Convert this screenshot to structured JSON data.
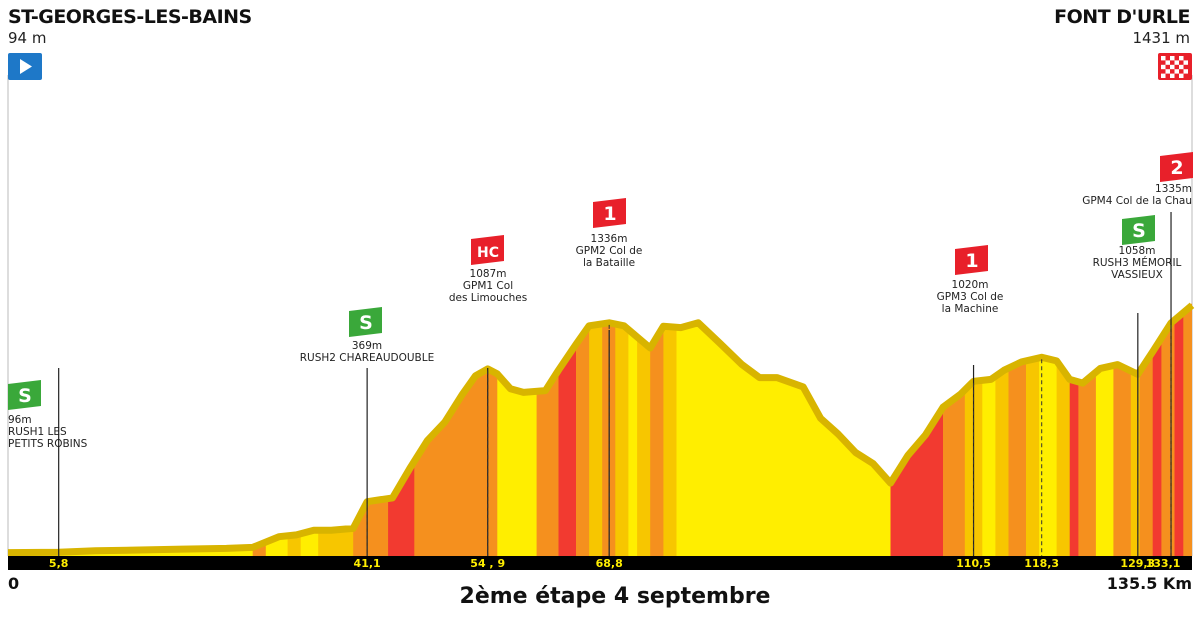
{
  "start": {
    "name": "ST-GEORGES-LES-BAINS",
    "altitude": "94 m"
  },
  "finish": {
    "name": "FONT D'URLE",
    "altitude": "1431 m"
  },
  "caption": "2ème étape 4 septembre",
  "distance_start": "0",
  "distance_end": "135.5 Km",
  "colors": {
    "flat": "#ffee00",
    "medium": "#f7c600",
    "steep": "#f5901e",
    "very_steep": "#f23a30",
    "ridge": "#d8b400",
    "sprint_badge": "#3aa83a",
    "climb_badge": "#e8202a",
    "start_flag": "#1e78c8"
  },
  "chart_data": {
    "type": "area",
    "x_unit": "km",
    "y_unit": "m",
    "xlim": [
      0,
      135.5
    ],
    "profile": [
      [
        0,
        94
      ],
      [
        5.8,
        96
      ],
      [
        10,
        104
      ],
      [
        15,
        108
      ],
      [
        20,
        113
      ],
      [
        25,
        117
      ],
      [
        28,
        122
      ],
      [
        31,
        180
      ],
      [
        33,
        190
      ],
      [
        35,
        215
      ],
      [
        37,
        215
      ],
      [
        39.5,
        225
      ],
      [
        41.1,
        369
      ],
      [
        44,
        390
      ],
      [
        46,
        550
      ],
      [
        48,
        700
      ],
      [
        50,
        800
      ],
      [
        52,
        950
      ],
      [
        53.5,
        1050
      ],
      [
        54.9,
        1087
      ],
      [
        56,
        1060
      ],
      [
        57.5,
        980
      ],
      [
        59,
        960
      ],
      [
        61.5,
        970
      ],
      [
        63,
        1080
      ],
      [
        65,
        1220
      ],
      [
        66.5,
        1320
      ],
      [
        68.8,
        1336
      ],
      [
        70.5,
        1320
      ],
      [
        72,
        1260
      ],
      [
        73.5,
        1200
      ],
      [
        75,
        1318
      ],
      [
        77,
        1310
      ],
      [
        79,
        1336
      ],
      [
        81.5,
        1225
      ],
      [
        84,
        1110
      ],
      [
        86,
        1040
      ],
      [
        88,
        1040
      ],
      [
        91,
        990
      ],
      [
        93,
        820
      ],
      [
        95,
        735
      ],
      [
        97,
        635
      ],
      [
        99,
        575
      ],
      [
        101,
        470
      ],
      [
        103,
        620
      ],
      [
        105,
        730
      ],
      [
        107,
        880
      ],
      [
        109,
        950
      ],
      [
        110.5,
        1020
      ],
      [
        112.5,
        1030
      ],
      [
        114,
        1080
      ],
      [
        116,
        1125
      ],
      [
        118.3,
        1150
      ],
      [
        120,
        1130
      ],
      [
        121.5,
        1030
      ],
      [
        123,
        1010
      ],
      [
        125,
        1090
      ],
      [
        127,
        1110
      ],
      [
        129.3,
        1058
      ],
      [
        131,
        1180
      ],
      [
        133.1,
        1335
      ],
      [
        135.5,
        1431
      ]
    ],
    "distance_markers": [
      "5,8",
      "41,1",
      "54 , 9",
      "68,8",
      "110,5",
      "118,3",
      "129,3",
      "133,1"
    ],
    "points": [
      {
        "km": 5.8,
        "type": "sprint",
        "badge": "S",
        "label_lines": [
          "96m",
          "RUSH1 LES",
          "PETITS ROBINS"
        ],
        "align": "left"
      },
      {
        "km": 41.1,
        "type": "sprint",
        "badge": "S",
        "label_lines": [
          "369m",
          "RUSH2 CHAREAUDOUBLE"
        ],
        "align": "center"
      },
      {
        "km": 54.9,
        "type": "climb",
        "badge": "HC",
        "label_lines": [
          "1087m",
          "GPM1 Col",
          "des Limouches"
        ],
        "align": "center"
      },
      {
        "km": 68.8,
        "type": "climb",
        "badge": "1",
        "label_lines": [
          "1336m",
          "GPM2 Col de",
          "la Bataille"
        ],
        "align": "center"
      },
      {
        "km": 110.5,
        "type": "climb",
        "badge": "1",
        "label_lines": [
          "1020m",
          "GPM3 Col de",
          "la Machine"
        ],
        "align": "center"
      },
      {
        "km": 129.3,
        "type": "sprint",
        "badge": "S",
        "label_lines": [
          "1058m",
          "RUSH3 MÉMORIL",
          "VASSIEUX"
        ],
        "align": "center"
      },
      {
        "km": 133.1,
        "type": "climb",
        "badge": "2",
        "label_lines": [
          "1335m",
          "GPM4 Col de la Chau"
        ],
        "align": "right"
      }
    ],
    "gradient_bands": [
      [
        0,
        28,
        "flat"
      ],
      [
        28,
        29.5,
        "steep"
      ],
      [
        29.5,
        32,
        "flat"
      ],
      [
        32,
        33.5,
        "medium"
      ],
      [
        33.5,
        35.5,
        "flat"
      ],
      [
        35.5,
        39.5,
        "medium"
      ],
      [
        39.5,
        43.5,
        "steep"
      ],
      [
        43.5,
        46.5,
        "very_steep"
      ],
      [
        46.5,
        56,
        "steep"
      ],
      [
        56,
        60.5,
        "flat"
      ],
      [
        60.5,
        63,
        "steep"
      ],
      [
        63,
        65,
        "very_steep"
      ],
      [
        65,
        66.5,
        "steep"
      ],
      [
        66.5,
        68,
        "medium"
      ],
      [
        68,
        69.5,
        "steep"
      ],
      [
        69.5,
        71,
        "medium"
      ],
      [
        71,
        72,
        "flat"
      ],
      [
        72,
        73.5,
        "medium"
      ],
      [
        73.5,
        75,
        "steep"
      ],
      [
        75,
        76.5,
        "medium"
      ],
      [
        76.5,
        101,
        "flat"
      ],
      [
        101,
        107,
        "very_steep"
      ],
      [
        107,
        109.5,
        "steep"
      ],
      [
        109.5,
        111.5,
        "medium"
      ],
      [
        111.5,
        113,
        "flat"
      ],
      [
        113,
        114.5,
        "medium"
      ],
      [
        114.5,
        116.5,
        "steep"
      ],
      [
        116.5,
        118,
        "medium"
      ],
      [
        118,
        120,
        "flat"
      ],
      [
        120,
        121.5,
        "medium"
      ],
      [
        121.5,
        122.5,
        "very_steep"
      ],
      [
        122.5,
        124.5,
        "steep"
      ],
      [
        124.5,
        126.5,
        "flat"
      ],
      [
        126.5,
        128.5,
        "steep"
      ],
      [
        128.5,
        129.5,
        "medium"
      ],
      [
        129.5,
        131,
        "steep"
      ],
      [
        131,
        132,
        "very_steep"
      ],
      [
        132,
        133.5,
        "steep"
      ],
      [
        133.5,
        134.5,
        "very_steep"
      ],
      [
        134.5,
        135.5,
        "steep"
      ]
    ]
  }
}
